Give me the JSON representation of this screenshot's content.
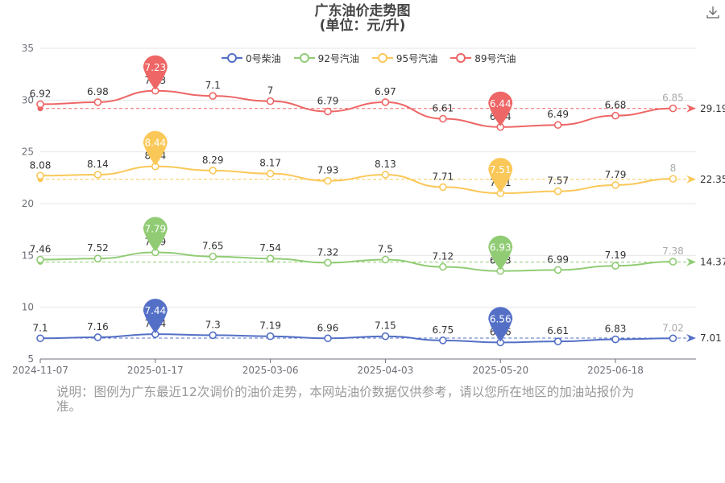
{
  "title_line1": "广东油价走势图",
  "title_line2": "(单位：元/升)",
  "note": "说明：图例为广东最近12次调价的油价走势，本网站油价数据仅供参考，请以您所在地区的加油站报价为准。",
  "download_icon": "download-icon",
  "chart_data": {
    "type": "line",
    "ylim": [
      5,
      35
    ],
    "yticks": [
      5,
      10,
      15,
      20,
      25,
      30,
      35
    ],
    "xtick_labels": [
      "2024-11-07",
      "2025-01-17",
      "2025-03-06",
      "2025-04-03",
      "2025-05-20",
      "2025-06-18"
    ],
    "xtick_indices": [
      0,
      2,
      4,
      6,
      8,
      10
    ],
    "legend_position": "top",
    "grid": true,
    "series": [
      {
        "name": "0号柴油",
        "color": "#5470c6",
        "values": [
          7.1,
          7.16,
          7.44,
          7.3,
          7.19,
          6.96,
          7.15,
          6.75,
          6.56,
          6.61,
          6.83,
          7.02
        ],
        "plotted": [
          7.0,
          7.1,
          7.4,
          7.3,
          7.2,
          7.0,
          7.2,
          6.8,
          6.6,
          6.7,
          6.9,
          7.0
        ],
        "max_label": "7.44",
        "min_label": "6.56",
        "avg_label": "7.01"
      },
      {
        "name": "92号汽油",
        "color": "#91cc75",
        "values": [
          7.46,
          7.52,
          7.79,
          7.65,
          7.54,
          7.32,
          7.5,
          7.12,
          6.93,
          6.99,
          7.19,
          7.38
        ],
        "plotted": [
          14.6,
          14.7,
          15.3,
          14.9,
          14.7,
          14.3,
          14.6,
          13.9,
          13.5,
          13.6,
          14.0,
          14.4
        ],
        "max_label": "7.79",
        "min_label": "6.93",
        "avg_label": "14.37"
      },
      {
        "name": "95号汽油",
        "color": "#fac858",
        "values": [
          8.08,
          8.14,
          8.44,
          8.29,
          8.17,
          7.93,
          8.13,
          7.71,
          7.51,
          7.57,
          7.79,
          8
        ],
        "plotted": [
          22.7,
          22.8,
          23.6,
          23.2,
          22.9,
          22.2,
          22.8,
          21.6,
          21.0,
          21.2,
          21.8,
          22.4
        ],
        "max_label": "8.44",
        "min_label": "7.51",
        "avg_label": "22.35"
      },
      {
        "name": "89号汽油",
        "color": "#ee6666",
        "values": [
          6.92,
          6.98,
          7.23,
          7.1,
          7.0,
          6.79,
          6.97,
          6.61,
          6.44,
          6.49,
          6.68,
          6.85
        ],
        "plotted": [
          29.6,
          29.8,
          30.9,
          30.4,
          29.9,
          28.9,
          29.8,
          28.2,
          27.4,
          27.6,
          28.5,
          29.2
        ],
        "max_label": "7.23",
        "min_label": "6.44",
        "avg_label": "29.19"
      }
    ]
  }
}
